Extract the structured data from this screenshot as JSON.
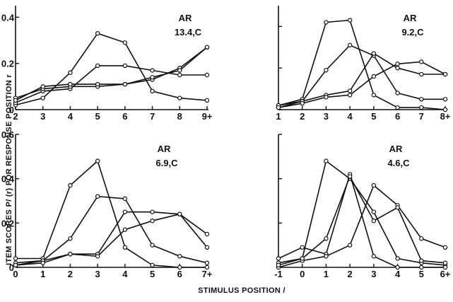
{
  "figure": {
    "ylabel": "ITEM SCORES P/ (r) FOR RESPONSE POSITION r",
    "xlabel": "STIMULUS POSITION /"
  },
  "chart_data": [
    {
      "type": "line",
      "panel": "top-left",
      "annotation_line1": "AR",
      "annotation_line2": "13.4,C",
      "x": [
        2,
        3,
        4,
        5,
        6,
        7,
        8,
        9
      ],
      "xticklabels": [
        "2",
        "3",
        "4",
        "5",
        "6",
        "7",
        "8",
        "9+"
      ],
      "xlim": [
        2,
        9
      ],
      "ylim": [
        0,
        0.45
      ],
      "yticks": [
        0,
        0.2,
        0.4
      ],
      "yticklabels": [
        "0",
        "0.2",
        "0.4"
      ],
      "series": [
        {
          "values": [
            0.02,
            0.05,
            0.16,
            0.33,
            0.29,
            0.08,
            0.05,
            0.04
          ]
        },
        {
          "values": [
            0.03,
            0.08,
            0.09,
            0.19,
            0.19,
            0.17,
            0.15,
            0.15
          ]
        },
        {
          "values": [
            0.05,
            0.09,
            0.1,
            0.1,
            0.11,
            0.13,
            0.18,
            0.27
          ]
        },
        {
          "values": [
            0.04,
            0.1,
            0.11,
            0.11,
            0.11,
            0.14,
            0.17,
            0.27
          ]
        }
      ]
    },
    {
      "type": "line",
      "panel": "top-right",
      "annotation_line1": "AR",
      "annotation_line2": "9.2,C",
      "x": [
        1,
        2,
        3,
        4,
        5,
        6,
        7,
        8
      ],
      "xticklabels": [
        "1",
        "2",
        "3",
        "4",
        "5",
        "6",
        "7",
        "8+"
      ],
      "xlim": [
        1,
        8
      ],
      "ylim": [
        0,
        0.5
      ],
      "yticks": [
        0,
        0.2,
        0.4
      ],
      "yticklabels": [],
      "series": [
        {
          "values": [
            0.02,
            0.05,
            0.42,
            0.43,
            0.07,
            0.01,
            0.01,
            0.0
          ]
        },
        {
          "values": [
            0.01,
            0.04,
            0.19,
            0.31,
            0.26,
            0.08,
            0.05,
            0.05
          ]
        },
        {
          "values": [
            0.02,
            0.04,
            0.07,
            0.09,
            0.27,
            0.2,
            0.17,
            0.17
          ]
        },
        {
          "values": [
            0.01,
            0.03,
            0.06,
            0.07,
            0.16,
            0.22,
            0.23,
            0.17
          ]
        }
      ]
    },
    {
      "type": "line",
      "panel": "bottom-left",
      "annotation_line1": "AR",
      "annotation_line2": "6.9,C",
      "x": [
        0,
        1,
        2,
        3,
        4,
        5,
        6,
        7
      ],
      "xticklabels": [
        "0",
        "1",
        "2",
        "3",
        "4",
        "5",
        "6",
        "7+"
      ],
      "xlim": [
        0,
        7
      ],
      "ylim": [
        0,
        0.6
      ],
      "yticks": [
        0,
        0.2,
        0.4,
        0.6
      ],
      "yticklabels": [
        "0",
        "0.2",
        "0.4",
        "0.6"
      ],
      "series": [
        {
          "values": [
            0.04,
            0.04,
            0.37,
            0.48,
            0.09,
            0.01,
            0.0,
            0.0
          ]
        },
        {
          "values": [
            0.01,
            0.03,
            0.13,
            0.32,
            0.31,
            0.1,
            0.05,
            0.02
          ]
        },
        {
          "values": [
            0.02,
            0.03,
            0.06,
            0.06,
            0.25,
            0.25,
            0.24,
            0.09
          ]
        },
        {
          "values": [
            0.01,
            0.02,
            0.06,
            0.05,
            0.17,
            0.21,
            0.24,
            0.15
          ]
        }
      ]
    },
    {
      "type": "line",
      "panel": "bottom-right",
      "annotation_line1": "AR",
      "annotation_line2": "4.6,C",
      "x": [
        -1,
        0,
        1,
        2,
        3,
        4,
        5,
        6
      ],
      "xticklabels": [
        "-1",
        "0",
        "1",
        "2",
        "3",
        "4",
        "5",
        "6+"
      ],
      "xlim": [
        -1,
        6
      ],
      "ylim": [
        0,
        0.6
      ],
      "yticks": [
        0,
        0.2,
        0.4,
        0.6
      ],
      "yticklabels": [],
      "series": [
        {
          "values": [
            0.02,
            0.04,
            0.48,
            0.4,
            0.25,
            0.04,
            0.02,
            0.01
          ]
        },
        {
          "values": [
            0.04,
            0.09,
            0.06,
            0.42,
            0.05,
            0.0,
            0.0,
            0.0
          ]
        },
        {
          "values": [
            0.0,
            0.03,
            0.05,
            0.1,
            0.37,
            0.28,
            0.13,
            0.09
          ]
        },
        {
          "values": [
            0.01,
            0.04,
            0.13,
            0.41,
            0.21,
            0.27,
            0.03,
            0.02
          ]
        }
      ]
    }
  ]
}
